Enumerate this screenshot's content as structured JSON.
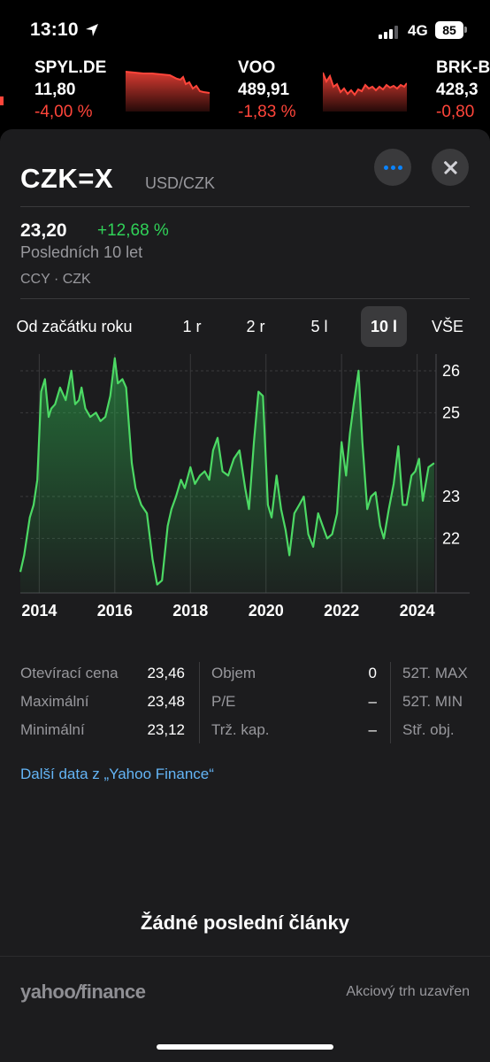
{
  "status_bar": {
    "time": "13:10",
    "network": "4G",
    "battery": "85",
    "icons": [
      "location-arrow-icon",
      "signal-icon",
      "battery-icon"
    ]
  },
  "tickers": [
    {
      "symbol": "",
      "price": "",
      "change": ""
    },
    {
      "symbol": "SPYL.DE",
      "price": "11,80",
      "change": "-4,00 %"
    },
    {
      "symbol": "VOO",
      "price": "489,91",
      "change": "-1,83 %"
    },
    {
      "symbol": "BRK-B",
      "price": "428,3",
      "change": "-0,80"
    }
  ],
  "colors": {
    "positive": "#30d158",
    "negative": "#ff453a",
    "link": "#64b5f6",
    "sheet_bg": "#1c1c1e"
  },
  "detail": {
    "symbol": "CZK=X",
    "pair": "USD/CZK",
    "price": "23,20",
    "change_pct": "+12,68 %",
    "period": "Posledních 10 let",
    "exchange": "CCY · CZK",
    "more_icon": "ellipsis-icon",
    "close_icon": "close-icon"
  },
  "range_tabs": [
    {
      "label": "Od začátku roku",
      "active": false
    },
    {
      "label": "1 r",
      "active": false
    },
    {
      "label": "2 r",
      "active": false
    },
    {
      "label": "5 l",
      "active": false
    },
    {
      "label": "10 l",
      "active": true
    },
    {
      "label": "VŠE",
      "active": false
    }
  ],
  "chart_data": {
    "type": "area",
    "title": "",
    "xlabel": "",
    "ylabel": "",
    "x_ticks": [
      "2014",
      "2016",
      "2018",
      "2020",
      "2022",
      "2024"
    ],
    "y_ticks": [
      "26",
      "25",
      "23",
      "22"
    ],
    "ylim": [
      20.7,
      26.4
    ],
    "xlim": [
      2013.5,
      2024.5
    ],
    "grid": true,
    "series": [
      {
        "name": "",
        "x": [
          2013.5,
          2013.6,
          2013.75,
          2013.85,
          2013.95,
          2014.05,
          2014.15,
          2014.25,
          2014.32,
          2014.42,
          2014.55,
          2014.7,
          2014.85,
          2014.95,
          2015.05,
          2015.12,
          2015.22,
          2015.35,
          2015.5,
          2015.62,
          2015.75,
          2015.88,
          2016.0,
          2016.08,
          2016.2,
          2016.3,
          2016.45,
          2016.55,
          2016.7,
          2016.85,
          2017.0,
          2017.12,
          2017.25,
          2017.4,
          2017.5,
          2017.62,
          2017.75,
          2017.85,
          2018.0,
          2018.12,
          2018.25,
          2018.38,
          2018.5,
          2018.6,
          2018.72,
          2018.85,
          2019.0,
          2019.15,
          2019.3,
          2019.45,
          2019.55,
          2019.68,
          2019.8,
          2019.92,
          2020.05,
          2020.15,
          2020.28,
          2020.4,
          2020.52,
          2020.62,
          2020.75,
          2020.88,
          2021.0,
          2021.12,
          2021.25,
          2021.38,
          2021.5,
          2021.62,
          2021.75,
          2021.88,
          2022.0,
          2022.12,
          2022.22,
          2022.32,
          2022.45,
          2022.55,
          2022.68,
          2022.78,
          2022.9,
          2023.02,
          2023.12,
          2023.25,
          2023.38,
          2023.5,
          2023.62,
          2023.72,
          2023.85,
          2023.95,
          2024.05,
          2024.15,
          2024.3,
          2024.45
        ],
        "y": [
          21.2,
          21.6,
          22.5,
          22.8,
          23.4,
          25.5,
          25.8,
          24.9,
          25.1,
          25.2,
          25.6,
          25.3,
          26.0,
          25.2,
          25.3,
          25.6,
          25.1,
          24.9,
          25.0,
          24.8,
          24.9,
          25.4,
          26.3,
          25.7,
          25.8,
          25.6,
          23.8,
          23.2,
          22.8,
          22.6,
          21.5,
          20.9,
          21.0,
          22.3,
          22.7,
          23.0,
          23.4,
          23.2,
          23.7,
          23.3,
          23.5,
          23.6,
          23.4,
          24.1,
          24.4,
          23.6,
          23.5,
          23.9,
          24.1,
          23.2,
          22.7,
          24.3,
          25.5,
          25.4,
          22.8,
          22.5,
          23.5,
          22.7,
          22.2,
          21.6,
          22.6,
          22.8,
          23.0,
          22.1,
          21.8,
          22.6,
          22.3,
          22.0,
          22.1,
          22.6,
          24.3,
          23.5,
          24.5,
          25.2,
          26.0,
          24.3,
          22.7,
          23.0,
          23.1,
          22.3,
          22.0,
          22.7,
          23.3,
          24.2,
          22.8,
          22.8,
          23.5,
          23.6,
          23.9,
          22.9,
          23.7,
          23.8
        ]
      }
    ]
  },
  "stats": {
    "col1": [
      {
        "label": "Otevírací cena",
        "value": "23,46"
      },
      {
        "label": "Maximální",
        "value": "23,48"
      },
      {
        "label": "Minimální",
        "value": "23,12"
      }
    ],
    "col2": [
      {
        "label": "Objem",
        "value": "0"
      },
      {
        "label": "P/E",
        "value": "–"
      },
      {
        "label": "Trž. kap.",
        "value": "–"
      }
    ],
    "col3": [
      {
        "label": "52T. MAX",
        "value": ""
      },
      {
        "label": "52T. MIN",
        "value": ""
      },
      {
        "label": "Stř. obj.",
        "value": ""
      }
    ]
  },
  "more_link": "Další data z „Yahoo Finance“",
  "no_articles": "Žádné poslední články",
  "footer": {
    "logo_left": "yahoo",
    "logo_slash": "/",
    "logo_right": "finance",
    "market_status": "Akciový trh uzavřen"
  }
}
